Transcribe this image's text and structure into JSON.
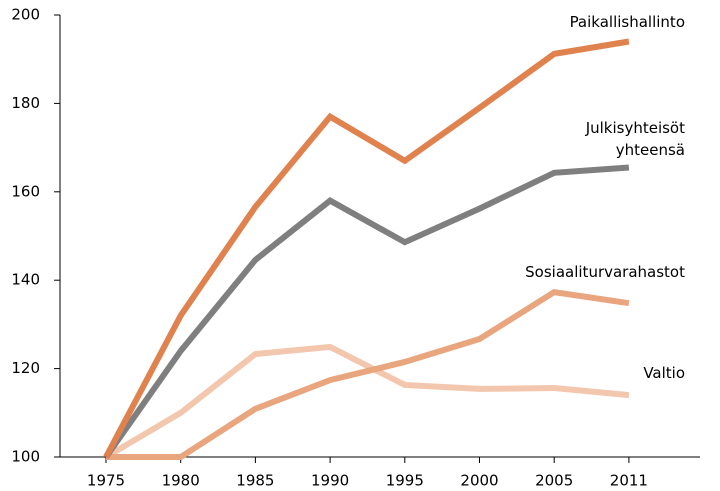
{
  "chart_data": {
    "type": "line",
    "categories": [
      "1975",
      "1980",
      "1985",
      "1990",
      "1995",
      "2000",
      "2005",
      "2011"
    ],
    "series": [
      {
        "name": "Paikallishallinto",
        "color": "#e0824e",
        "values": [
          100,
          132,
          156.6,
          177,
          167,
          179,
          191.2,
          194
        ]
      },
      {
        "name": "Julkisyhteisöt yhteensä",
        "color": "#7f7f7f",
        "values": [
          100,
          124,
          144.6,
          158,
          148.6,
          156.2,
          164.3,
          165.5
        ]
      },
      {
        "name": "Sosiaaliturvarahastot",
        "color": "#e8a57e",
        "values": [
          100,
          100,
          110.9,
          117.4,
          121.5,
          126.7,
          137.3,
          134.8
        ]
      },
      {
        "name": "Valtio",
        "color": "#f2c7ad",
        "values": [
          100,
          110,
          123.3,
          124.9,
          116.3,
          115.4,
          115.6,
          114
        ]
      }
    ],
    "ylim": [
      100,
      200
    ],
    "yticks": [
      100,
      120,
      140,
      160,
      180,
      200
    ],
    "grid": false
  }
}
